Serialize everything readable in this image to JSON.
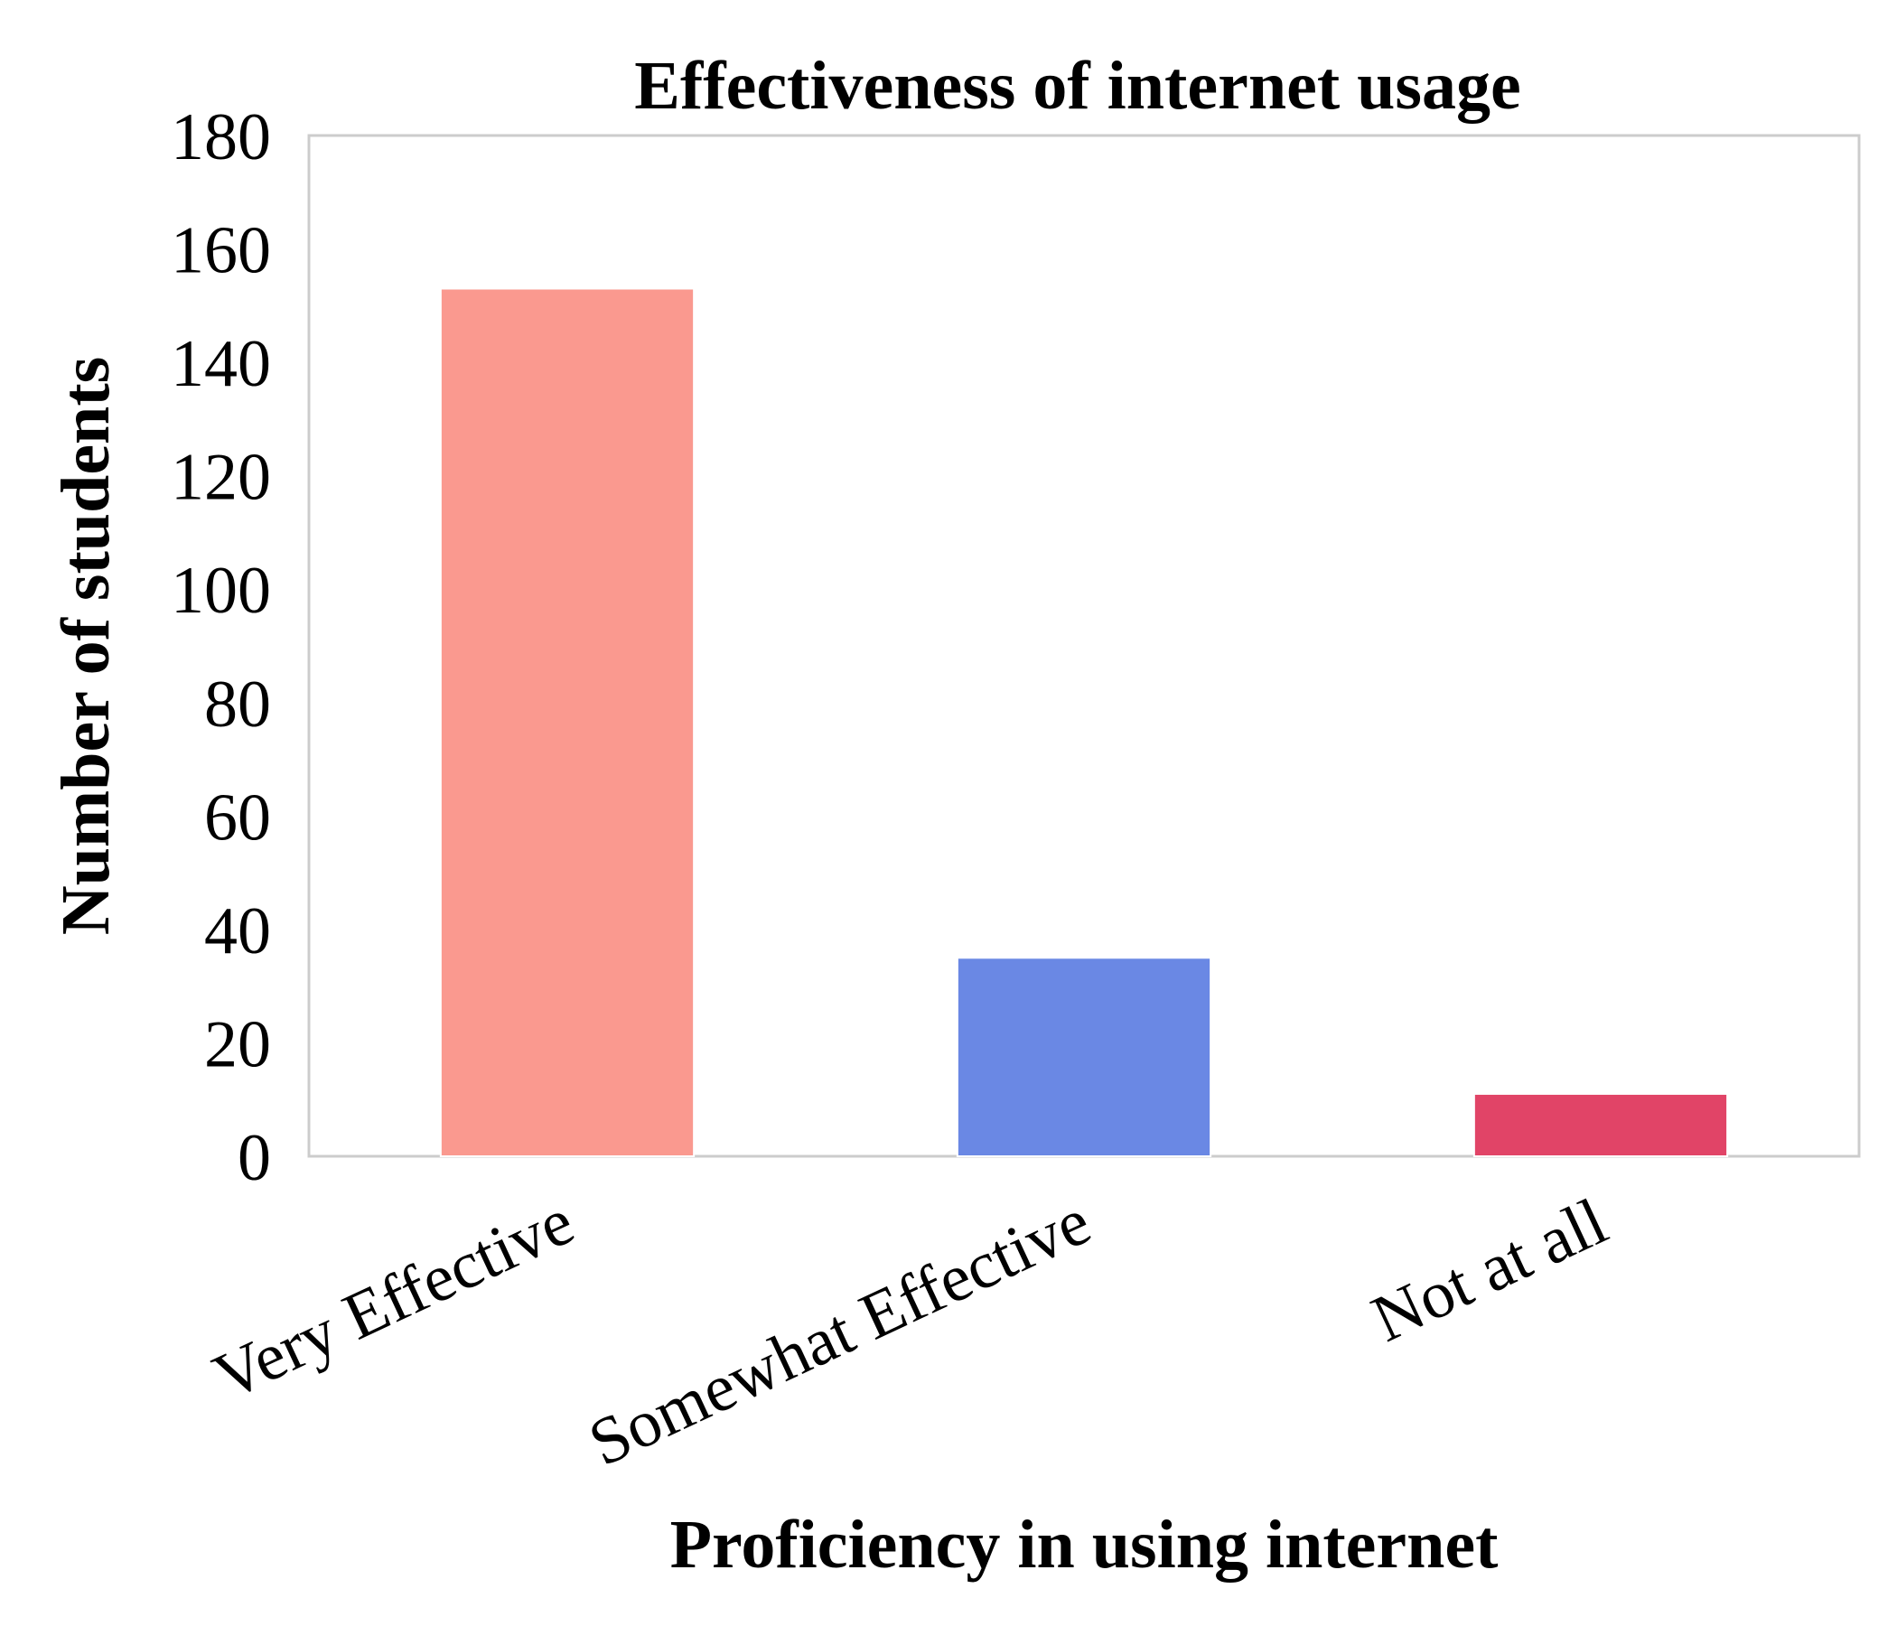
{
  "chart_data": {
    "type": "bar",
    "title": "Effectiveness of internet usage",
    "xlabel": "Proficiency in using internet",
    "ylabel": "Number of students",
    "categories": [
      "Very Effective",
      "Somewhat Effective",
      "Not at all"
    ],
    "values": [
      153,
      35,
      11
    ],
    "colors": [
      "#fa998f",
      "#6a88e4",
      "#e14467"
    ],
    "ylim": [
      0,
      180
    ],
    "yticks": [
      0,
      20,
      40,
      60,
      80,
      100,
      120,
      140,
      160,
      180
    ],
    "grid": false,
    "legend": "none"
  }
}
